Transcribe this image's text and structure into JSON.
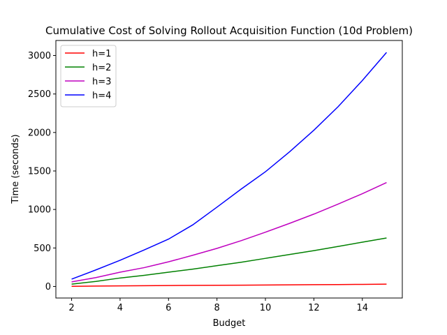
{
  "chart_data": {
    "type": "line",
    "title": "Cumulative Cost of Solving Rollout Acquisition Function (10d Problem)",
    "xlabel": "Budget",
    "ylabel": "Time (seconds)",
    "xlim": [
      1.35,
      15.65
    ],
    "ylim": [
      -150,
      3195
    ],
    "xticks": [
      2,
      4,
      6,
      8,
      10,
      12,
      14
    ],
    "yticks": [
      0,
      500,
      1000,
      1500,
      2000,
      2500,
      3000
    ],
    "grid": false,
    "legend_position": "top-left",
    "x": [
      2,
      3,
      4,
      5,
      6,
      7,
      8,
      9,
      10,
      11,
      12,
      13,
      14,
      15
    ],
    "series": [
      {
        "name": "h=1",
        "color": "#ff0000",
        "values": [
          2,
          5,
          8,
          10,
          12,
          14,
          15,
          17,
          19,
          21,
          23,
          25,
          27,
          30
        ]
      },
      {
        "name": "h=2",
        "color": "#008000",
        "values": [
          30,
          65,
          110,
          145,
          185,
          225,
          270,
          315,
          365,
          415,
          465,
          520,
          575,
          630
        ]
      },
      {
        "name": "h=3",
        "color": "#bf00bf",
        "values": [
          60,
          115,
          185,
          245,
          320,
          405,
          495,
          595,
          705,
          820,
          940,
          1070,
          1205,
          1350
        ]
      },
      {
        "name": "h=4",
        "color": "#0000ff",
        "values": [
          95,
          215,
          340,
          475,
          615,
          800,
          1030,
          1265,
          1490,
          1750,
          2030,
          2335,
          2675,
          3040
        ]
      }
    ]
  }
}
